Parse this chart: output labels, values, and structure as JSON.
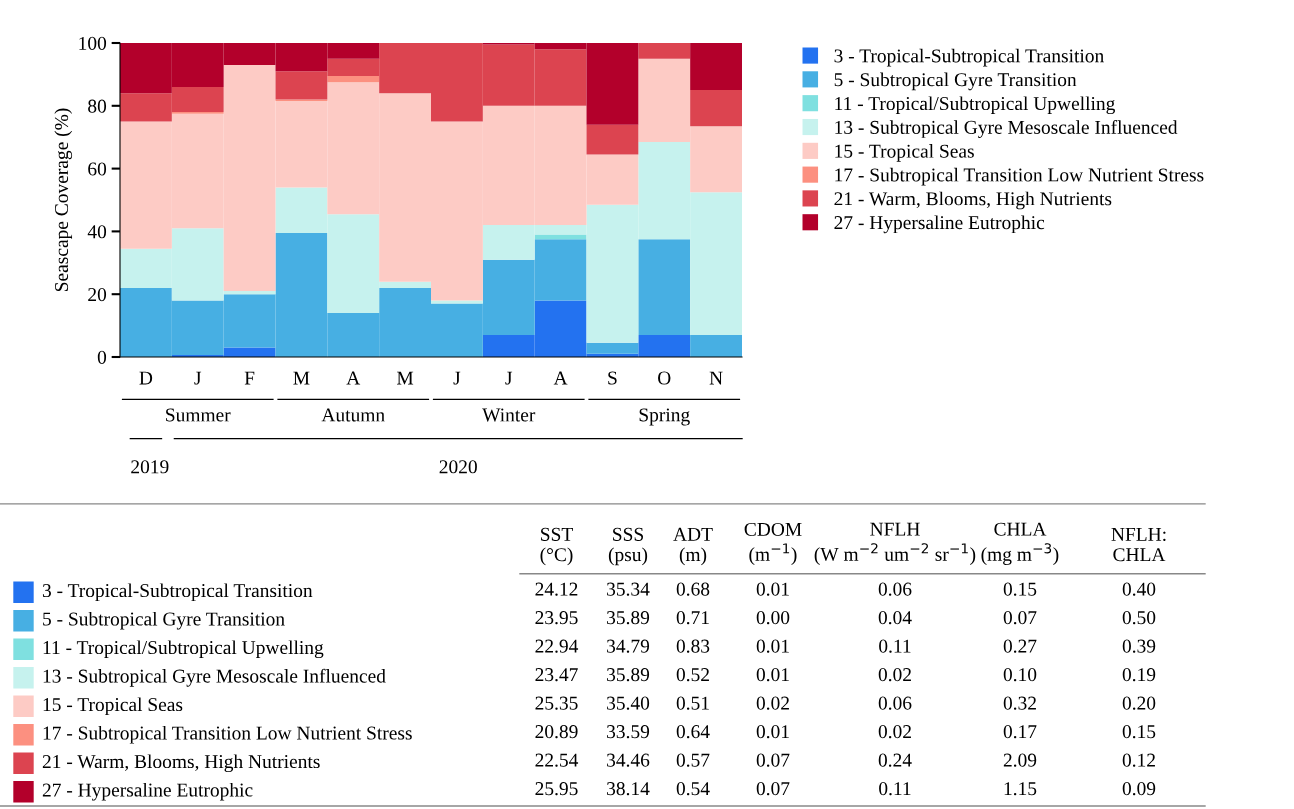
{
  "chart_data": [
    {
      "type": "bar",
      "stacked": true,
      "ylabel": "Seascape Coverage (%)",
      "categories": [
        "D",
        "J",
        "F",
        "M",
        "A",
        "M",
        "J",
        "J",
        "A",
        "S",
        "O",
        "N"
      ],
      "ylim": [
        0,
        100
      ],
      "yticks": [
        0,
        20,
        40,
        60,
        80,
        100
      ],
      "grid": false,
      "legend": "top right",
      "annotations": [
        "Summer",
        "Autumn",
        "Winter",
        "Spring",
        "2019",
        "2020"
      ],
      "series": [
        {
          "name": "3 - Tropical-Subtropical Transition",
          "color": "#2372f0",
          "values": [
            0,
            0.6,
            3,
            0,
            0,
            0,
            0,
            7,
            18,
            1,
            7,
            0
          ]
        },
        {
          "name": "5 - Subtropical Gyre Transition",
          "color": "#47afe3",
          "values": [
            22,
            17.4,
            17,
            39.5,
            14,
            22,
            17,
            24,
            19.5,
            3.5,
            30.5,
            7
          ]
        },
        {
          "name": "11 - Tropical/Subtropical Upwelling",
          "color": "#7fe0e0",
          "values": [
            0,
            0,
            0,
            0,
            0,
            0,
            0,
            0,
            1.5,
            0,
            0,
            0
          ]
        },
        {
          "name": "13 - Subtropical Gyre Mesoscale Influenced",
          "color": "#c6f2ee",
          "values": [
            12.5,
            23,
            1,
            14.5,
            31.5,
            2,
            1,
            11,
            3,
            44,
            31,
            45.5
          ]
        },
        {
          "name": "15 - Tropical Seas",
          "color": "#fdcbc5",
          "values": [
            40.5,
            36.5,
            72,
            27.5,
            42,
            60,
            57,
            38,
            38,
            16,
            26.5,
            21
          ]
        },
        {
          "name": "17 - Subtropical Transition Low Nutrient Stress",
          "color": "#fc9080",
          "values": [
            0,
            0.5,
            0,
            0.5,
            2,
            0,
            0,
            0,
            0,
            0,
            0,
            0
          ]
        },
        {
          "name": "21 - Warm, Blooms, High Nutrients",
          "color": "#dc4450",
          "values": [
            9,
            8,
            0,
            9,
            5.5,
            16,
            25,
            19.5,
            18,
            9.5,
            5,
            11.5
          ]
        },
        {
          "name": "27 - Hypersaline Eutrophic",
          "color": "#b3002b",
          "values": [
            16,
            14,
            7,
            9,
            5,
            0,
            0,
            0.5,
            2,
            26,
            0,
            15
          ]
        }
      ]
    },
    {
      "type": "heatmap",
      "categories": [
        "SST\n(°C)",
        "SSS\n(psu)",
        "ADT\n(m)",
        "CDOM\n(m$^{−1}$)",
        "NFLH\n(W m$^{−2}$ um$^{−2}$ sr$^{−1}$)",
        "CHLA\n(mg m$^{−3}$)",
        "NFLH:\nCHLA"
      ],
      "y_categories": [
        "3 - Tropical-Subtropical Transition",
        "5 - Subtropical Gyre Transition",
        "11 - Tropical/Subtropical Upwelling",
        "13 - Subtropical Gyre Mesoscale Influenced",
        "15 - Tropical Seas",
        "17 - Subtropical Transition Low Nutrient Stress",
        "21 - Warm, Blooms, High Nutrients",
        "27 - Hypersaline Eutrophic"
      ],
      "colors": [
        "#2372f0",
        "#47afe3",
        "#7fe0e0",
        "#c6f2ee",
        "#fdcbc5",
        "#fc9080",
        "#dc4450",
        "#b3002b"
      ],
      "cells": [
        [
          24.12,
          35.34,
          0.68,
          0.01,
          0.06,
          0.15,
          0.4
        ],
        [
          23.95,
          35.89,
          0.71,
          0.0,
          0.04,
          0.07,
          0.5
        ],
        [
          22.94,
          34.79,
          0.83,
          0.01,
          0.11,
          0.27,
          0.39
        ],
        [
          23.47,
          35.89,
          0.52,
          0.01,
          0.02,
          0.1,
          0.19
        ],
        [
          25.35,
          35.4,
          0.51,
          0.02,
          0.06,
          0.32,
          0.2
        ],
        [
          20.89,
          33.59,
          0.64,
          0.01,
          0.02,
          0.17,
          0.15
        ],
        [
          22.54,
          34.46,
          0.57,
          0.07,
          0.24,
          2.09,
          0.12
        ],
        [
          25.95,
          38.14,
          0.54,
          0.07,
          0.11,
          1.15,
          0.09
        ]
      ],
      "cell_labels": [
        [
          "24.12",
          "35.34",
          "0.68",
          "0.01",
          "0.06",
          "0.15",
          "0.40"
        ],
        [
          "23.95",
          "35.89",
          "0.71",
          "0.00",
          "0.04",
          "0.07",
          "0.50"
        ],
        [
          "22.94",
          "34.79",
          "0.83",
          "0.01",
          "0.11",
          "0.27",
          "0.39"
        ],
        [
          "23.47",
          "35.89",
          "0.52",
          "0.01",
          "0.02",
          "0.10",
          "0.19"
        ],
        [
          "25.35",
          "35.40",
          "0.51",
          "0.02",
          "0.06",
          "0.32",
          "0.20"
        ],
        [
          "20.89",
          "33.59",
          "0.64",
          "0.01",
          "0.02",
          "0.17",
          "0.15"
        ],
        [
          "22.54",
          "34.46",
          "0.57",
          "0.07",
          "0.24",
          "2.09",
          "0.12"
        ],
        [
          "25.95",
          "38.14",
          "0.54",
          "0.07",
          "0.11",
          "1.15",
          "0.09"
        ]
      ]
    }
  ]
}
